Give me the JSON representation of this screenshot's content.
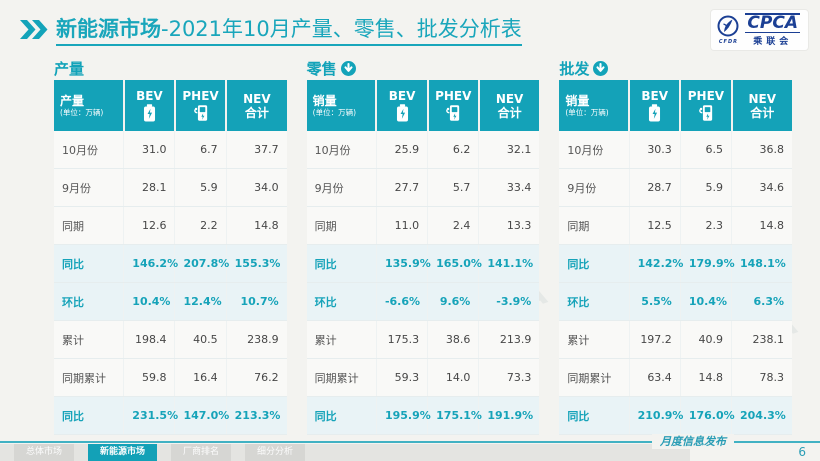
{
  "header": {
    "title_bold": "新能源市场",
    "title_rest": "-2021年10月产量、零售、批发分析表",
    "logo": {
      "abbr": "CPCA",
      "sub": "CFDR",
      "name": "乘联会"
    }
  },
  "colors": {
    "accent_teal": "#14a2b8",
    "title_teal": "#19a6bb",
    "highlight_text": "#16a3b9",
    "logo_navy": "#1b3f94",
    "page_bg": "#f3f3f0"
  },
  "watermark": {
    "text": "乘联会 CPCA"
  },
  "tables": [
    {
      "section_title": "产量",
      "has_down_arrow": false,
      "corner_label": "产量",
      "corner_unit": "(单位：万辆)",
      "columns": [
        {
          "label": "BEV",
          "label2": "",
          "icon": "battery-icon"
        },
        {
          "label": "PHEV",
          "label2": "",
          "icon": "charger-icon"
        },
        {
          "label": "NEV",
          "label2": "合计",
          "icon": ""
        }
      ],
      "rows": [
        {
          "label": "10月份",
          "values": [
            "31.0",
            "6.7",
            "37.7"
          ],
          "highlight": false
        },
        {
          "label": "9月份",
          "values": [
            "28.1",
            "5.9",
            "34.0"
          ],
          "highlight": false
        },
        {
          "label": "同期",
          "values": [
            "12.6",
            "2.2",
            "14.8"
          ],
          "highlight": false
        },
        {
          "label": "同比",
          "values": [
            "146.2%",
            "207.8%",
            "155.3%"
          ],
          "highlight": true
        },
        {
          "label": "环比",
          "values": [
            "10.4%",
            "12.4%",
            "10.7%"
          ],
          "highlight": true
        },
        {
          "label": "累计",
          "values": [
            "198.4",
            "40.5",
            "238.9"
          ],
          "highlight": false
        },
        {
          "label": "同期累计",
          "values": [
            "59.8",
            "16.4",
            "76.2"
          ],
          "highlight": false
        },
        {
          "label": "同比",
          "values": [
            "231.5%",
            "147.0%",
            "213.3%"
          ],
          "highlight": true
        }
      ]
    },
    {
      "section_title": "零售",
      "has_down_arrow": true,
      "corner_label": "销量",
      "corner_unit": "(单位：万辆)",
      "columns": [
        {
          "label": "BEV",
          "label2": "",
          "icon": "battery-icon"
        },
        {
          "label": "PHEV",
          "label2": "",
          "icon": "charger-icon"
        },
        {
          "label": "NEV",
          "label2": "合计",
          "icon": ""
        }
      ],
      "rows": [
        {
          "label": "10月份",
          "values": [
            "25.9",
            "6.2",
            "32.1"
          ],
          "highlight": false
        },
        {
          "label": "9月份",
          "values": [
            "27.7",
            "5.7",
            "33.4"
          ],
          "highlight": false
        },
        {
          "label": "同期",
          "values": [
            "11.0",
            "2.4",
            "13.3"
          ],
          "highlight": false
        },
        {
          "label": "同比",
          "values": [
            "135.9%",
            "165.0%",
            "141.1%"
          ],
          "highlight": true
        },
        {
          "label": "环比",
          "values": [
            "-6.6%",
            "9.6%",
            "-3.9%"
          ],
          "highlight": true
        },
        {
          "label": "累计",
          "values": [
            "175.3",
            "38.6",
            "213.9"
          ],
          "highlight": false
        },
        {
          "label": "同期累计",
          "values": [
            "59.3",
            "14.0",
            "73.3"
          ],
          "highlight": false
        },
        {
          "label": "同比",
          "values": [
            "195.9%",
            "175.1%",
            "191.9%"
          ],
          "highlight": true
        }
      ]
    },
    {
      "section_title": "批发",
      "has_down_arrow": true,
      "corner_label": "销量",
      "corner_unit": "(单位：万辆)",
      "columns": [
        {
          "label": "BEV",
          "label2": "",
          "icon": "battery-icon"
        },
        {
          "label": "PHEV",
          "label2": "",
          "icon": "charger-icon"
        },
        {
          "label": "NEV",
          "label2": "合计",
          "icon": ""
        }
      ],
      "rows": [
        {
          "label": "10月份",
          "values": [
            "30.3",
            "6.5",
            "36.8"
          ],
          "highlight": false
        },
        {
          "label": "9月份",
          "values": [
            "28.7",
            "5.9",
            "34.6"
          ],
          "highlight": false
        },
        {
          "label": "同期",
          "values": [
            "12.5",
            "2.3",
            "14.8"
          ],
          "highlight": false
        },
        {
          "label": "同比",
          "values": [
            "142.2%",
            "179.9%",
            "148.1%"
          ],
          "highlight": true
        },
        {
          "label": "环比",
          "values": [
            "5.5%",
            "10.4%",
            "6.3%"
          ],
          "highlight": true
        },
        {
          "label": "累计",
          "values": [
            "197.2",
            "40.9",
            "238.1"
          ],
          "highlight": false
        },
        {
          "label": "同期累计",
          "values": [
            "63.4",
            "14.8",
            "78.3"
          ],
          "highlight": false
        },
        {
          "label": "同比",
          "values": [
            "210.9%",
            "176.0%",
            "204.3%"
          ],
          "highlight": true
        }
      ]
    }
  ],
  "footer": {
    "tabs": [
      {
        "label": "总体市场",
        "active": false
      },
      {
        "label": "新能源市场",
        "active": true
      },
      {
        "label": "厂商排名",
        "active": false
      },
      {
        "label": "细分分析",
        "active": false
      }
    ],
    "publication": "月度信息发布",
    "page_number": "6"
  }
}
